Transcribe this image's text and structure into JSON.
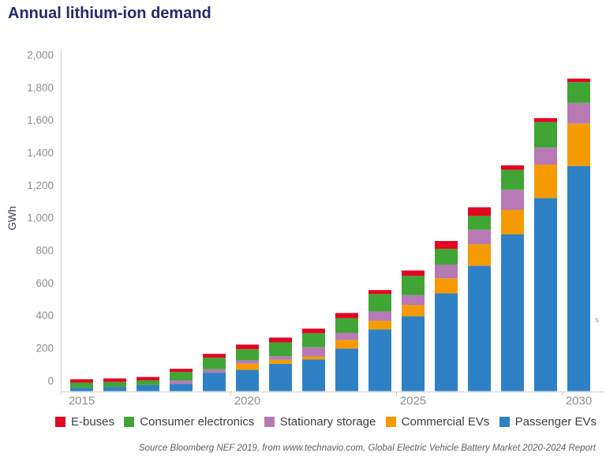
{
  "title": "Annual lithium-ion demand",
  "y_axis": {
    "label": "GWh",
    "tick_labels": [
      "0",
      "200",
      "400",
      "600",
      "800",
      "1,000",
      "1,200",
      "1,400",
      "1,600",
      "1,800",
      "2,000"
    ],
    "tick_values": [
      0,
      200,
      400,
      600,
      800,
      1000,
      1200,
      1400,
      1600,
      1800,
      2000
    ]
  },
  "x_axis": {
    "tick_labels": [
      "2015",
      "2020",
      "2025",
      "2030"
    ],
    "tick_bar_index": [
      0,
      5,
      10,
      15
    ]
  },
  "chart_data": {
    "type": "bar",
    "stacked": true,
    "title": "Annual lithium-ion demand",
    "xlabel": "",
    "ylabel": "GWh",
    "ylim": [
      0,
      2000
    ],
    "grid": false,
    "legend_position": "bottom",
    "x": [
      2015,
      2016,
      2017,
      2018,
      2019,
      2020,
      2021,
      2022,
      2023,
      2024,
      2025,
      2026,
      2027,
      2028,
      2029,
      2030
    ],
    "series": [
      {
        "name": "Passenger EVs",
        "color": "#2e81c5",
        "values": [
          21,
          26,
          37,
          44,
          113,
          131,
          168,
          195,
          261,
          379,
          460,
          600,
          770,
          963,
          1186,
          1383
        ]
      },
      {
        "name": "Commercial EVs",
        "color": "#f59b00",
        "values": [
          0,
          0,
          0,
          0,
          0,
          37,
          24,
          18,
          53,
          53,
          69,
          93,
          132,
          150,
          205,
          261
        ]
      },
      {
        "name": "Stationary storage",
        "color": "#b77ab5",
        "values": [
          0,
          0,
          0,
          21,
          21,
          21,
          22,
          57,
          44,
          57,
          61,
          84,
          89,
          124,
          105,
          126
        ]
      },
      {
        "name": "Consumer electronics",
        "color": "#40a535",
        "values": [
          32,
          31,
          29,
          53,
          71,
          69,
          86,
          86,
          90,
          108,
          119,
          97,
          86,
          122,
          157,
          129
        ]
      },
      {
        "name": "E-buses",
        "color": "#e30521",
        "values": [
          20,
          21,
          21,
          19,
          24,
          28,
          29,
          28,
          32,
          24,
          32,
          48,
          52,
          28,
          24,
          21
        ]
      }
    ],
    "totals": [
      73,
      78,
      87,
      137,
      229,
      286,
      329,
      384,
      480,
      621,
      741,
      922,
      1129,
      1387,
      1677,
      1920
    ],
    "legend": [
      {
        "label": "E-buses",
        "color": "#e30521"
      },
      {
        "label": "Consumer electronics",
        "color": "#40a535"
      },
      {
        "label": "Stationary storage",
        "color": "#b77ab5"
      },
      {
        "label": "Commercial EVs",
        "color": "#f59b00"
      },
      {
        "label": "Passenger EVs",
        "color": "#2e81c5"
      }
    ]
  },
  "colors": {
    "title": "#252b6a",
    "axis_line": "#d6d6d6",
    "tick_text": "#8e8e8e",
    "ylabel_text": "#3a3a58",
    "legend_text": "#3b4046",
    "source_text": "#5f5f5f"
  },
  "source_note": "Source Bloomberg NEF 2019, from www.technavio.com, Global Electric Vehicle Battery Market 2020-2024 Report",
  "stray_fragment": "s"
}
